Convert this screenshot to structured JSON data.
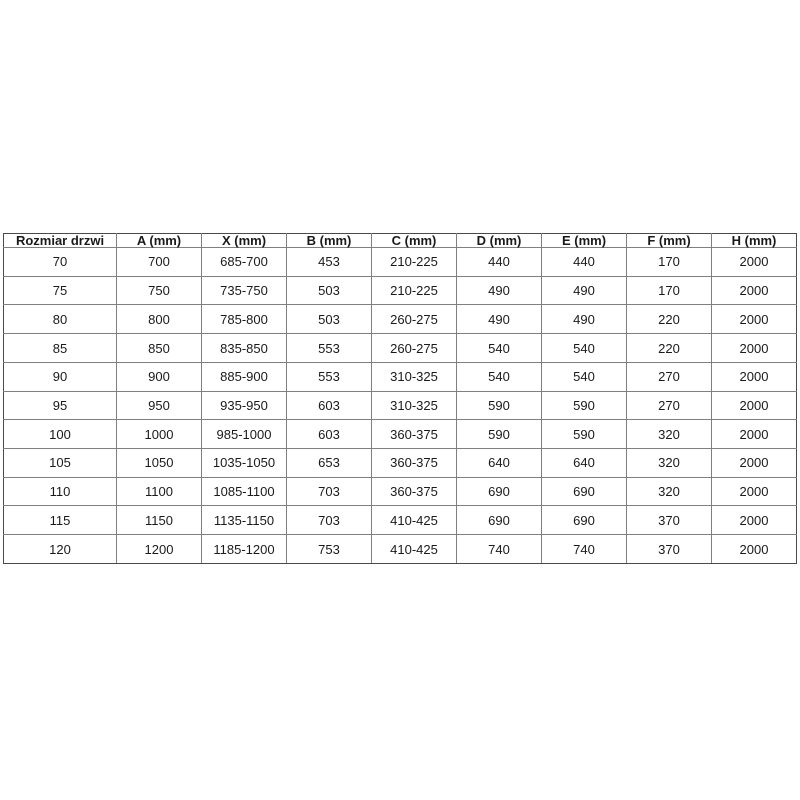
{
  "page": {
    "background_color": "#ffffff"
  },
  "table": {
    "name": "door-size-specification-table",
    "text_color": "#1a1a1a",
    "border_inner_color": "#7f7f7f",
    "border_outer_color": "#4a4a4a",
    "columns": [
      "Rozmiar drzwi",
      "A (mm)",
      "X (mm)",
      "B (mm)",
      "C (mm)",
      "D (mm)",
      "E (mm)",
      "F (mm)",
      "H (mm)"
    ],
    "rows": [
      [
        "70",
        "700",
        "685-700",
        "453",
        "210-225",
        "440",
        "440",
        "170",
        "2000"
      ],
      [
        "75",
        "750",
        "735-750",
        "503",
        "210-225",
        "490",
        "490",
        "170",
        "2000"
      ],
      [
        "80",
        "800",
        "785-800",
        "503",
        "260-275",
        "490",
        "490",
        "220",
        "2000"
      ],
      [
        "85",
        "850",
        "835-850",
        "553",
        "260-275",
        "540",
        "540",
        "220",
        "2000"
      ],
      [
        "90",
        "900",
        "885-900",
        "553",
        "310-325",
        "540",
        "540",
        "270",
        "2000"
      ],
      [
        "95",
        "950",
        "935-950",
        "603",
        "310-325",
        "590",
        "590",
        "270",
        "2000"
      ],
      [
        "100",
        "1000",
        "985-1000",
        "603",
        "360-375",
        "590",
        "590",
        "320",
        "2000"
      ],
      [
        "105",
        "1050",
        "1035-1050",
        "653",
        "360-375",
        "640",
        "640",
        "320",
        "2000"
      ],
      [
        "110",
        "1100",
        "1085-1100",
        "703",
        "360-375",
        "690",
        "690",
        "320",
        "2000"
      ],
      [
        "115",
        "1150",
        "1135-1150",
        "703",
        "410-425",
        "690",
        "690",
        "370",
        "2000"
      ],
      [
        "120",
        "1200",
        "1185-1200",
        "753",
        "410-425",
        "740",
        "740",
        "370",
        "2000"
      ]
    ]
  }
}
